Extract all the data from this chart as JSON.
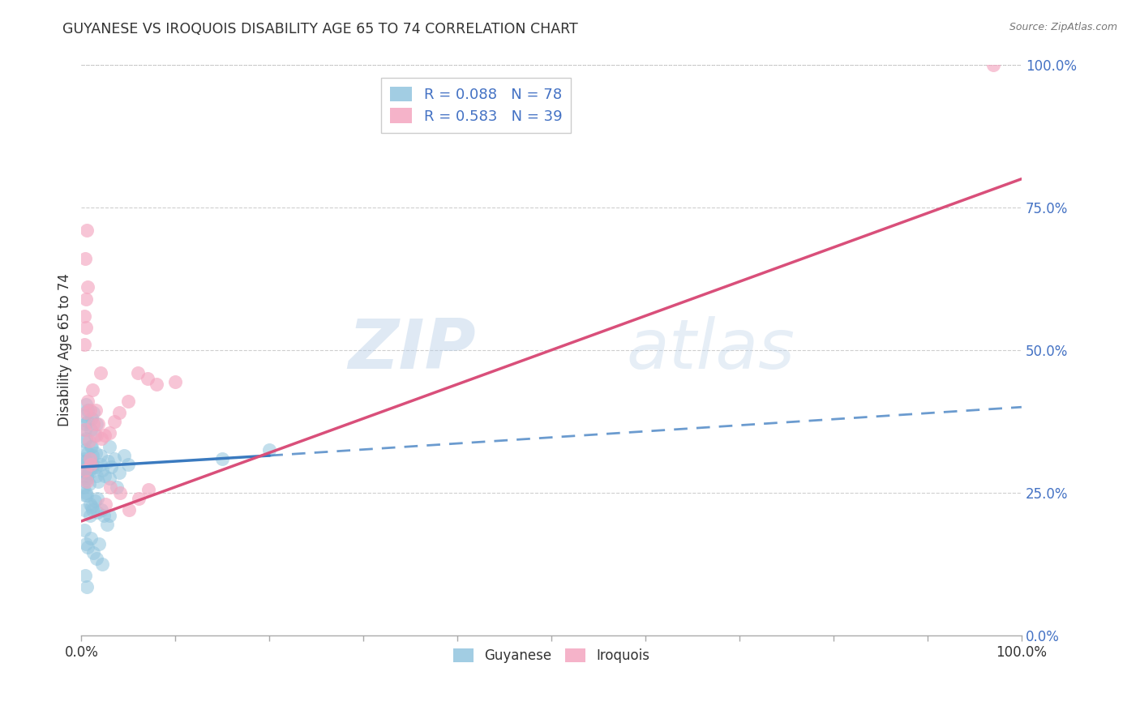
{
  "title": "GUYANESE VS IROQUOIS DISABILITY AGE 65 TO 74 CORRELATION CHART",
  "source": "Source: ZipAtlas.com",
  "ylabel": "Disability Age 65 to 74",
  "watermark_zip": "ZIP",
  "watermark_atlas": "atlas",
  "blue_label": "Guyanese",
  "pink_label": "Iroquois",
  "blue_R": 0.088,
  "blue_N": 78,
  "pink_R": 0.583,
  "pink_N": 39,
  "blue_color": "#92c5de",
  "pink_color": "#f4a6c0",
  "blue_line_color": "#3a7abf",
  "pink_line_color": "#d94f7a",
  "blue_scatter": [
    [
      0.5,
      30.0
    ],
    [
      0.8,
      28.5
    ],
    [
      1.0,
      33.0
    ],
    [
      1.2,
      30.0
    ],
    [
      1.5,
      32.0
    ],
    [
      1.8,
      27.0
    ],
    [
      2.0,
      31.5
    ],
    [
      2.2,
      29.0
    ],
    [
      2.5,
      28.0
    ],
    [
      2.8,
      30.5
    ],
    [
      3.0,
      33.0
    ],
    [
      3.2,
      29.5
    ],
    [
      3.5,
      31.0
    ],
    [
      3.8,
      26.0
    ],
    [
      4.0,
      28.5
    ],
    [
      4.5,
      31.5
    ],
    [
      5.0,
      30.0
    ],
    [
      0.4,
      36.0
    ],
    [
      0.7,
      37.5
    ],
    [
      1.1,
      38.0
    ],
    [
      1.3,
      39.0
    ],
    [
      1.6,
      37.0
    ],
    [
      0.3,
      22.0
    ],
    [
      0.6,
      24.5
    ],
    [
      0.9,
      21.0
    ],
    [
      1.1,
      22.5
    ],
    [
      1.4,
      23.5
    ],
    [
      1.7,
      24.0
    ],
    [
      2.1,
      22.0
    ],
    [
      2.4,
      21.0
    ],
    [
      2.7,
      19.5
    ],
    [
      3.0,
      21.0
    ],
    [
      0.3,
      18.5
    ],
    [
      0.5,
      16.0
    ],
    [
      0.7,
      15.5
    ],
    [
      1.0,
      17.0
    ],
    [
      1.3,
      14.5
    ],
    [
      1.6,
      13.5
    ],
    [
      1.9,
      16.0
    ],
    [
      2.2,
      12.5
    ],
    [
      0.4,
      10.5
    ],
    [
      0.6,
      8.5
    ],
    [
      0.3,
      29.0
    ],
    [
      0.5,
      30.5
    ],
    [
      0.7,
      32.0
    ],
    [
      0.9,
      31.0
    ],
    [
      1.1,
      33.0
    ],
    [
      0.4,
      27.0
    ],
    [
      0.6,
      28.0
    ],
    [
      0.8,
      26.5
    ],
    [
      1.2,
      29.5
    ],
    [
      1.6,
      28.0
    ],
    [
      0.3,
      34.0
    ],
    [
      0.5,
      34.5
    ],
    [
      1.0,
      36.0
    ],
    [
      1.4,
      35.0
    ],
    [
      0.5,
      25.0
    ],
    [
      0.4,
      24.5
    ],
    [
      0.9,
      23.0
    ],
    [
      1.2,
      22.0
    ],
    [
      1.7,
      21.5
    ],
    [
      0.2,
      30.5
    ],
    [
      0.3,
      31.0
    ],
    [
      0.4,
      32.5
    ],
    [
      0.5,
      28.5
    ],
    [
      0.6,
      27.5
    ],
    [
      0.8,
      29.0
    ],
    [
      1.0,
      30.0
    ],
    [
      1.2,
      31.5
    ],
    [
      1.5,
      29.5
    ],
    [
      2.0,
      30.0
    ],
    [
      3.0,
      27.5
    ],
    [
      0.2,
      26.0
    ],
    [
      0.3,
      38.5
    ],
    [
      0.5,
      40.5
    ],
    [
      0.7,
      39.5
    ],
    [
      0.4,
      37.0
    ],
    [
      15.0,
      31.0
    ],
    [
      20.0,
      32.5
    ]
  ],
  "pink_scatter": [
    [
      0.3,
      36.0
    ],
    [
      0.5,
      39.0
    ],
    [
      0.8,
      34.0
    ],
    [
      1.0,
      30.0
    ],
    [
      1.2,
      43.0
    ],
    [
      1.5,
      39.5
    ],
    [
      1.8,
      37.0
    ],
    [
      2.0,
      46.0
    ],
    [
      2.5,
      35.0
    ],
    [
      3.0,
      35.5
    ],
    [
      3.5,
      37.5
    ],
    [
      4.0,
      39.0
    ],
    [
      5.0,
      41.0
    ],
    [
      6.0,
      46.0
    ],
    [
      7.0,
      45.0
    ],
    [
      0.3,
      56.0
    ],
    [
      0.5,
      59.0
    ],
    [
      0.7,
      61.0
    ],
    [
      0.4,
      66.0
    ],
    [
      0.6,
      71.0
    ],
    [
      0.3,
      51.0
    ],
    [
      0.5,
      54.0
    ],
    [
      8.0,
      44.0
    ],
    [
      10.0,
      44.5
    ],
    [
      0.7,
      41.0
    ],
    [
      0.9,
      39.5
    ],
    [
      1.3,
      37.0
    ],
    [
      1.6,
      35.0
    ],
    [
      2.1,
      34.5
    ],
    [
      2.6,
      23.0
    ],
    [
      3.1,
      26.0
    ],
    [
      4.1,
      25.0
    ],
    [
      5.1,
      22.0
    ],
    [
      6.1,
      24.0
    ],
    [
      7.1,
      25.5
    ],
    [
      0.4,
      29.0
    ],
    [
      0.6,
      27.0
    ],
    [
      0.9,
      31.0
    ],
    [
      97.0,
      100.0
    ]
  ],
  "xlim": [
    0,
    100
  ],
  "ylim": [
    0,
    100
  ],
  "blue_line_x0": 0,
  "blue_line_y0": 29.5,
  "blue_line_x_solid_end": 20,
  "blue_line_y_solid_end": 31.5,
  "blue_line_x_dash_end": 100,
  "blue_line_y_dash_end": 40.0,
  "pink_line_x0": 0,
  "pink_line_y0": 20.0,
  "pink_line_x_end": 100,
  "pink_line_y_end": 80.0,
  "background_color": "#ffffff",
  "grid_color": "#bbbbbb",
  "ytick_color": "#4472c4",
  "title_color": "#333333",
  "source_color": "#777777",
  "label_color": "#333333"
}
